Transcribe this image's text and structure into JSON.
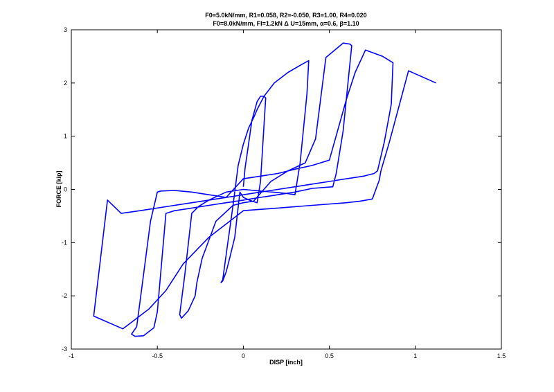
{
  "chart_data": {
    "type": "line",
    "title_lines": [
      "F0=5.0kN/mm, R1=0.058, R2=-0.050, R3=1.00, R4=0.020",
      "F0=8.0kN/mm, FI=1.2kN Δ U=15mm, α=0.6, β=1.10"
    ],
    "xlabel": "DISP [inch]",
    "ylabel": "FORCE [kip]",
    "xlim": [
      -1,
      1.5
    ],
    "ylim": [
      -3,
      3
    ],
    "xticks": [
      -1,
      -0.5,
      0,
      0.5,
      1,
      1.5
    ],
    "xtick_labels": [
      "-1",
      "-0.5",
      "0",
      "0.5",
      "1",
      "1.5"
    ],
    "yticks": [
      -3,
      -2,
      -1,
      0,
      1,
      2,
      3
    ],
    "ytick_labels": [
      "-3",
      "-2",
      "-1",
      "0",
      "1",
      "2",
      "3"
    ],
    "grid": false,
    "line_color": "#0000ff",
    "series": [
      {
        "x": [
          0.0,
          0.01,
          0.03,
          0.05,
          0.08,
          0.1,
          0.12,
          0.13,
          0.12,
          0.1,
          0.08,
          0.05,
          0.02,
          0.0,
          -0.02,
          -0.05,
          -0.08,
          -0.1,
          -0.12,
          -0.13,
          -0.12,
          -0.09,
          -0.06,
          -0.03,
          0.0,
          0.03,
          0.06,
          0.08,
          0.12,
          0.18,
          0.26,
          0.34,
          0.38,
          0.37,
          0.33,
          0.3,
          0.26,
          0.2,
          0.1,
          0.0,
          -0.1,
          -0.2,
          -0.26,
          -0.3,
          -0.34,
          -0.37,
          -0.36,
          -0.32,
          -0.28,
          -0.27,
          -0.24,
          -0.16,
          -0.06,
          0.0,
          0.06,
          0.16,
          0.26,
          0.36,
          0.42,
          0.48,
          0.58,
          0.62,
          0.63,
          0.58,
          0.54,
          0.52,
          0.4,
          0.3,
          0.2,
          0.1,
          0.0,
          -0.1,
          -0.2,
          -0.3,
          -0.4,
          -0.45,
          -0.5,
          -0.52,
          -0.58,
          -0.63,
          -0.65,
          -0.62,
          -0.58,
          -0.54,
          -0.5,
          -0.48,
          -0.4,
          -0.3,
          -0.2,
          -0.1,
          0.0,
          0.1,
          0.2,
          0.3,
          0.4,
          0.5,
          0.6,
          0.65,
          0.71,
          0.81,
          0.87,
          0.86,
          0.82,
          0.78,
          0.76,
          0.7,
          0.6,
          0.5,
          0.4,
          0.3,
          0.2,
          0.1,
          0.0,
          -0.2,
          -0.4,
          -0.6,
          -0.71,
          -0.79,
          -0.87,
          -0.7,
          -0.55,
          -0.45,
          -0.35,
          -0.2,
          0.0,
          0.2,
          0.4,
          0.6,
          0.68,
          0.75,
          0.79,
          0.8,
          0.85,
          0.96,
          1.12
        ],
        "y": [
          0.05,
          0.4,
          0.85,
          1.3,
          1.65,
          1.75,
          1.75,
          1.72,
          1.2,
          0.15,
          -0.25,
          -0.22,
          -0.18,
          -0.15,
          -0.05,
          -0.9,
          -1.3,
          -1.55,
          -1.72,
          -1.75,
          -1.7,
          -1.0,
          -0.3,
          0.45,
          0.85,
          1.15,
          1.35,
          1.5,
          1.75,
          2.0,
          2.2,
          2.35,
          2.42,
          1.8,
          0.5,
          -0.1,
          -0.08,
          -0.06,
          -0.03,
          0.0,
          -0.05,
          -0.2,
          -0.32,
          -0.45,
          -1.6,
          -2.35,
          -2.42,
          -2.28,
          -2.0,
          -1.75,
          -1.3,
          -0.6,
          -0.3,
          -0.25,
          -0.22,
          0.15,
          0.35,
          0.5,
          0.95,
          2.48,
          2.75,
          2.73,
          2.7,
          1.1,
          0.3,
          0.05,
          0.02,
          -0.05,
          -0.1,
          -0.15,
          -0.2,
          -0.25,
          -0.3,
          -0.35,
          -0.4,
          -0.45,
          -2.3,
          -2.6,
          -2.75,
          -2.76,
          -2.72,
          -2.58,
          -1.6,
          -0.6,
          -0.05,
          -0.03,
          -0.02,
          -0.05,
          -0.1,
          -0.15,
          0.2,
          0.25,
          0.3,
          0.38,
          0.45,
          0.55,
          1.7,
          2.2,
          2.62,
          2.5,
          2.38,
          1.6,
          0.9,
          0.35,
          0.3,
          0.25,
          0.2,
          0.15,
          0.1,
          0.05,
          0.0,
          -0.05,
          -0.1,
          -0.2,
          -0.3,
          -0.4,
          -0.45,
          -0.2,
          -2.38,
          -2.62,
          -2.25,
          -1.9,
          -1.4,
          -0.9,
          -0.4,
          -0.35,
          -0.3,
          -0.25,
          -0.22,
          -0.18,
          0.17,
          0.35,
          0.9,
          2.23,
          2.0
        ]
      }
    ]
  }
}
